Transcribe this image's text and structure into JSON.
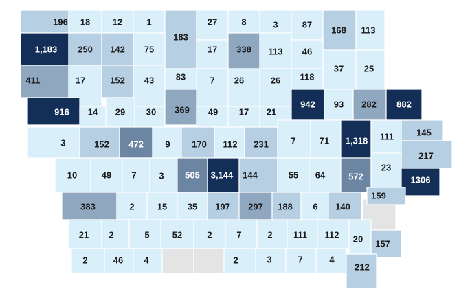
{
  "map": {
    "colors": {
      "level0": "#d9effa",
      "level1": "#b7cfe3",
      "level2": "#8fa8c0",
      "level3": "#6b85a3",
      "level4": "#142f57",
      "nodata": "#e4e4e4",
      "text_dark": "#1a1a1a",
      "text_light": "#ffffff"
    },
    "counties": [
      {
        "id": "r0c0",
        "value": "196"
      },
      {
        "id": "r0c1",
        "value": "18"
      },
      {
        "id": "r0c2",
        "value": "12"
      },
      {
        "id": "r0c3",
        "value": "1"
      },
      {
        "id": "r0c4",
        "value": "183"
      },
      {
        "id": "r0c5",
        "value": "27"
      },
      {
        "id": "r0c6",
        "value": "8"
      },
      {
        "id": "r0c7",
        "value": "3"
      },
      {
        "id": "r0c8",
        "value": "87"
      },
      {
        "id": "r0c9",
        "value": "168"
      },
      {
        "id": "r0c10",
        "value": "113"
      },
      {
        "id": "r1c0",
        "value": "1,183"
      },
      {
        "id": "r1c1",
        "value": "250"
      },
      {
        "id": "r1c2",
        "value": "142"
      },
      {
        "id": "r1c3",
        "value": "75"
      },
      {
        "id": "r1c5",
        "value": "17"
      },
      {
        "id": "r1c6",
        "value": "338"
      },
      {
        "id": "r1c7",
        "value": "113"
      },
      {
        "id": "r1c8",
        "value": "46"
      },
      {
        "id": "r2c0",
        "value": "411"
      },
      {
        "id": "r2c1",
        "value": "17"
      },
      {
        "id": "r2c2",
        "value": "152"
      },
      {
        "id": "r2c3",
        "value": "43"
      },
      {
        "id": "r2c4",
        "value": "83"
      },
      {
        "id": "r2c5",
        "value": "7"
      },
      {
        "id": "r2c6",
        "value": "26"
      },
      {
        "id": "r2c7",
        "value": "26"
      },
      {
        "id": "r2c8",
        "value": "118"
      },
      {
        "id": "r2c9",
        "value": "37"
      },
      {
        "id": "r2c10",
        "value": "25"
      },
      {
        "id": "r3c0",
        "value": "916"
      },
      {
        "id": "r3c1",
        "value": "14"
      },
      {
        "id": "r3c2",
        "value": "29"
      },
      {
        "id": "r3c3",
        "value": "30"
      },
      {
        "id": "r3c4",
        "value": "369"
      },
      {
        "id": "r3c5",
        "value": "49"
      },
      {
        "id": "r3c6",
        "value": "17"
      },
      {
        "id": "r3c7",
        "value": "21"
      },
      {
        "id": "r3c8",
        "value": "942"
      },
      {
        "id": "r3c9",
        "value": "93"
      },
      {
        "id": "r3c10",
        "value": "282"
      },
      {
        "id": "r3c11",
        "value": "882"
      },
      {
        "id": "r4c0",
        "value": "3"
      },
      {
        "id": "r4c1",
        "value": "152"
      },
      {
        "id": "r4c2",
        "value": "472"
      },
      {
        "id": "r4c3",
        "value": "9"
      },
      {
        "id": "r4c4",
        "value": "170"
      },
      {
        "id": "r4c5",
        "value": "112"
      },
      {
        "id": "r4c6",
        "value": "231"
      },
      {
        "id": "r4c7",
        "value": "7"
      },
      {
        "id": "r4c8",
        "value": "71"
      },
      {
        "id": "r4c9",
        "value": "1,318"
      },
      {
        "id": "r4c10",
        "value": "111"
      },
      {
        "id": "r4c11",
        "value": "145"
      },
      {
        "id": "r4c12",
        "value": "217"
      },
      {
        "id": "r5c0",
        "value": "10"
      },
      {
        "id": "r5c1",
        "value": "49"
      },
      {
        "id": "r5c2",
        "value": "7"
      },
      {
        "id": "r5c3",
        "value": "3"
      },
      {
        "id": "r5c4",
        "value": "505"
      },
      {
        "id": "r5c5",
        "value": "3,144"
      },
      {
        "id": "r5c6",
        "value": "144"
      },
      {
        "id": "r5c7",
        "value": "55"
      },
      {
        "id": "r5c8",
        "value": "64"
      },
      {
        "id": "r5c9",
        "value": "572"
      },
      {
        "id": "r5c10",
        "value": "23"
      },
      {
        "id": "r5c11",
        "value": "1306"
      },
      {
        "id": "r5c12",
        "value": "159"
      },
      {
        "id": "r6c0",
        "value": "383"
      },
      {
        "id": "r6c1",
        "value": "2"
      },
      {
        "id": "r6c2",
        "value": "15"
      },
      {
        "id": "r6c3",
        "value": "35"
      },
      {
        "id": "r6c4",
        "value": "197"
      },
      {
        "id": "r6c5",
        "value": "297"
      },
      {
        "id": "r6c6",
        "value": "188"
      },
      {
        "id": "r6c7",
        "value": "6"
      },
      {
        "id": "r6c8",
        "value": "140"
      },
      {
        "id": "r7c0",
        "value": "21"
      },
      {
        "id": "r7c1",
        "value": "2"
      },
      {
        "id": "r7c2",
        "value": "5"
      },
      {
        "id": "r7c3",
        "value": "52"
      },
      {
        "id": "r7c4",
        "value": "2"
      },
      {
        "id": "r7c5",
        "value": "7"
      },
      {
        "id": "r7c6",
        "value": "2"
      },
      {
        "id": "r7c7",
        "value": "111"
      },
      {
        "id": "r7c8",
        "value": "112"
      },
      {
        "id": "r7c9",
        "value": "20"
      },
      {
        "id": "r7c10",
        "value": "157"
      },
      {
        "id": "r8c0",
        "value": "2"
      },
      {
        "id": "r8c1",
        "value": "46"
      },
      {
        "id": "r8c2",
        "value": "4"
      },
      {
        "id": "r8c5",
        "value": "2"
      },
      {
        "id": "r8c6",
        "value": "3"
      },
      {
        "id": "r8c7",
        "value": "7"
      },
      {
        "id": "r8c8",
        "value": "4"
      },
      {
        "id": "r8c9",
        "value": "212"
      }
    ]
  }
}
